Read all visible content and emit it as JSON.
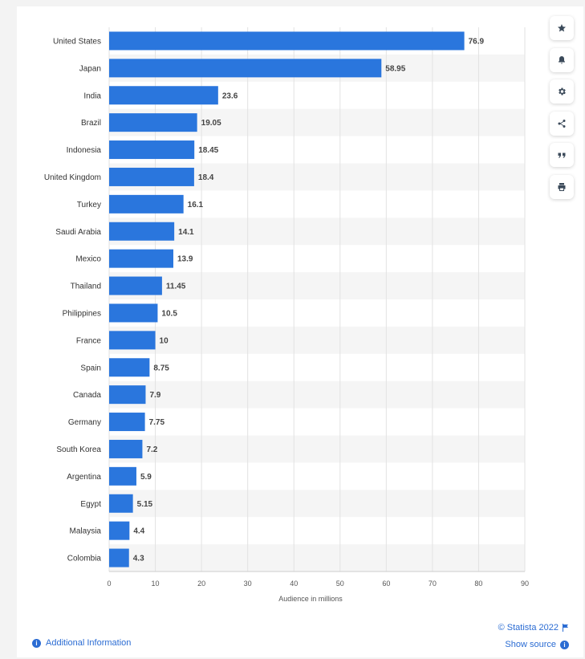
{
  "chart_data": {
    "type": "bar",
    "orientation": "horizontal",
    "categories": [
      "United States",
      "Japan",
      "India",
      "Brazil",
      "Indonesia",
      "United Kingdom",
      "Turkey",
      "Saudi Arabia",
      "Mexico",
      "Thailand",
      "Philippines",
      "France",
      "Spain",
      "Canada",
      "Germany",
      "South Korea",
      "Argentina",
      "Egypt",
      "Malaysia",
      "Colombia"
    ],
    "values": [
      76.9,
      58.95,
      23.6,
      19.05,
      18.45,
      18.4,
      16.1,
      14.1,
      13.9,
      11.45,
      10.5,
      10,
      8.75,
      7.9,
      7.75,
      7.2,
      5.9,
      5.15,
      4.4,
      4.3
    ],
    "value_labels": [
      "76.9",
      "58.95",
      "23.6",
      "19.05",
      "18.45",
      "18.4",
      "16.1",
      "14.1",
      "13.9",
      "11.45",
      "10.5",
      "10",
      "8.75",
      "7.9",
      "7.75",
      "7.2",
      "5.9",
      "5.15",
      "4.4",
      "4.3"
    ],
    "xlabel": "Audience in millions",
    "xlim": [
      0,
      90
    ],
    "xticks": [
      0,
      10,
      20,
      30,
      40,
      50,
      60,
      70,
      80,
      90
    ],
    "grid": true,
    "bar_color": "#2a76dd"
  },
  "sidebar": {
    "buttons": [
      {
        "icon": "star-icon"
      },
      {
        "icon": "bell-icon"
      },
      {
        "icon": "gear-icon"
      },
      {
        "icon": "share-icon"
      },
      {
        "icon": "quote-icon"
      },
      {
        "icon": "print-icon"
      }
    ]
  },
  "footer": {
    "additional_info": "Additional Information",
    "copyright": "© Statista 2022",
    "show_source": "Show source",
    "link_color": "#2b6cd3"
  }
}
